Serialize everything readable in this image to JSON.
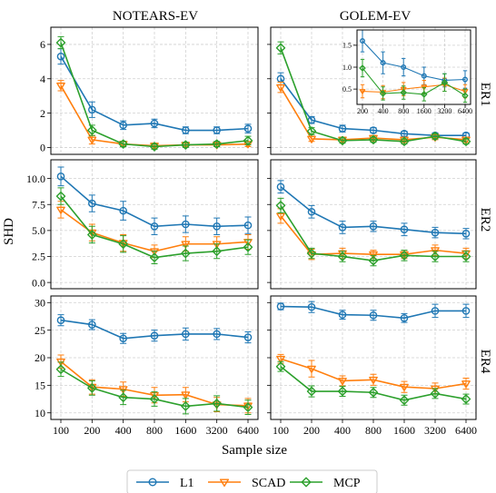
{
  "figure": {
    "xlabel": "Sample size",
    "ylabel": "SHD",
    "col_titles": [
      "NOTEARS-EV",
      "GOLEM-EV"
    ],
    "row_labels": [
      "ER1",
      "ER2",
      "ER4"
    ],
    "legend": [
      "L1",
      "SCAD",
      "MCP"
    ],
    "colors": {
      "L1": "#1f77b4",
      "SCAD": "#ff7f0e",
      "MCP": "#2ca02c"
    }
  },
  "chart_data": [
    {
      "type": "line",
      "panel": "ER1 / NOTEARS-EV",
      "categories": [
        "100",
        "200",
        "400",
        "800",
        "1600",
        "3200",
        "6400"
      ],
      "ylim": [
        -0.4,
        7.0
      ],
      "yticks": [
        0,
        2,
        4,
        6
      ],
      "grid": true,
      "series": [
        {
          "name": "L1",
          "values": [
            5.3,
            2.2,
            1.3,
            1.4,
            1.0,
            1.0,
            1.1
          ],
          "err": [
            0.45,
            0.45,
            0.25,
            0.25,
            0.2,
            0.2,
            0.25
          ]
        },
        {
          "name": "SCAD",
          "values": [
            3.6,
            0.45,
            0.2,
            0.1,
            0.15,
            0.15,
            0.2
          ],
          "err": [
            0.3,
            0.25,
            0.15,
            0.15,
            0.1,
            0.1,
            0.15
          ]
        },
        {
          "name": "MCP",
          "values": [
            6.1,
            1.0,
            0.2,
            0.05,
            0.15,
            0.2,
            0.4
          ],
          "err": [
            0.35,
            0.3,
            0.15,
            0.15,
            0.15,
            0.15,
            0.25
          ]
        }
      ]
    },
    {
      "type": "line",
      "panel": "ER1 / GOLEM-EV",
      "categories": [
        "100",
        "200",
        "400",
        "800",
        "1600",
        "3200",
        "6400"
      ],
      "ylim": [
        -0.4,
        7.0
      ],
      "yticks": [
        0,
        2,
        4,
        6
      ],
      "grid": true,
      "series": [
        {
          "name": "L1",
          "values": [
            4.0,
            1.6,
            1.1,
            1.0,
            0.8,
            0.7,
            0.7
          ],
          "err": [
            0.35,
            0.2,
            0.2,
            0.15,
            0.15,
            0.15,
            0.15
          ]
        },
        {
          "name": "SCAD",
          "values": [
            3.5,
            0.5,
            0.45,
            0.55,
            0.45,
            0.6,
            0.45
          ],
          "err": [
            0.3,
            0.15,
            0.15,
            0.15,
            0.15,
            0.15,
            0.15
          ]
        },
        {
          "name": "MCP",
          "values": [
            5.8,
            0.95,
            0.4,
            0.45,
            0.35,
            0.65,
            0.35
          ],
          "err": [
            0.35,
            0.2,
            0.15,
            0.15,
            0.15,
            0.15,
            0.15
          ]
        }
      ]
    },
    {
      "type": "line",
      "panel": "ER1 / GOLEM-EV inset",
      "categories": [
        "200",
        "400",
        "800",
        "1600",
        "3200",
        "6400"
      ],
      "ylim": [
        0.15,
        1.85
      ],
      "yticks": [
        0.5,
        1.0,
        1.5
      ],
      "grid": true,
      "series": [
        {
          "name": "L1",
          "values": [
            1.6,
            1.1,
            1.0,
            0.8,
            0.7,
            0.72
          ],
          "err": [
            0.25,
            0.25,
            0.2,
            0.2,
            0.15,
            0.2
          ]
        },
        {
          "name": "SCAD",
          "values": [
            0.45,
            0.43,
            0.5,
            0.55,
            0.6,
            0.45
          ],
          "err": [
            0.15,
            0.15,
            0.15,
            0.15,
            0.15,
            0.15
          ]
        },
        {
          "name": "MCP",
          "values": [
            0.98,
            0.4,
            0.42,
            0.38,
            0.65,
            0.35
          ],
          "err": [
            0.2,
            0.15,
            0.15,
            0.15,
            0.2,
            0.15
          ]
        }
      ]
    },
    {
      "type": "line",
      "panel": "ER2 / NOTEARS-EV",
      "categories": [
        "100",
        "200",
        "400",
        "800",
        "1600",
        "3200",
        "6400"
      ],
      "ylim": [
        -0.6,
        11.8
      ],
      "yticks": [
        0.0,
        2.5,
        5.0,
        7.5,
        10.0
      ],
      "grid": true,
      "series": [
        {
          "name": "L1",
          "values": [
            10.2,
            7.6,
            6.9,
            5.4,
            5.6,
            5.4,
            5.5
          ],
          "err": [
            0.9,
            0.8,
            0.9,
            0.8,
            0.8,
            0.8,
            0.8
          ]
        },
        {
          "name": "SCAD",
          "values": [
            7.0,
            4.8,
            3.8,
            3.0,
            3.7,
            3.7,
            3.9
          ],
          "err": [
            0.8,
            0.8,
            0.8,
            0.6,
            0.7,
            0.7,
            0.7
          ]
        },
        {
          "name": "MCP",
          "values": [
            8.3,
            4.6,
            3.7,
            2.4,
            2.8,
            3.0,
            3.4
          ],
          "err": [
            0.8,
            0.8,
            0.8,
            0.6,
            0.7,
            0.7,
            0.7
          ]
        }
      ]
    },
    {
      "type": "line",
      "panel": "ER2 / GOLEM-EV",
      "categories": [
        "100",
        "200",
        "400",
        "800",
        "1600",
        "3200",
        "6400"
      ],
      "ylim": [
        -0.6,
        11.8
      ],
      "yticks": [
        0.0,
        2.5,
        5.0,
        7.5,
        10.0
      ],
      "grid": true,
      "series": [
        {
          "name": "L1",
          "values": [
            9.2,
            6.8,
            5.3,
            5.4,
            5.1,
            4.8,
            4.7
          ],
          "err": [
            0.6,
            0.6,
            0.6,
            0.5,
            0.6,
            0.5,
            0.5
          ]
        },
        {
          "name": "SCAD",
          "values": [
            6.4,
            2.7,
            2.8,
            2.7,
            2.7,
            3.1,
            2.8
          ],
          "err": [
            0.7,
            0.5,
            0.5,
            0.4,
            0.4,
            0.5,
            0.5
          ]
        },
        {
          "name": "MCP",
          "values": [
            7.4,
            2.8,
            2.5,
            2.1,
            2.6,
            2.5,
            2.5
          ],
          "err": [
            0.7,
            0.5,
            0.5,
            0.5,
            0.5,
            0.5,
            0.5
          ]
        }
      ]
    },
    {
      "type": "line",
      "panel": "ER4 / NOTEARS-EV",
      "categories": [
        "100",
        "200",
        "400",
        "800",
        "1600",
        "3200",
        "6400"
      ],
      "ylim": [
        8.8,
        31.2
      ],
      "yticks": [
        10,
        15,
        20,
        25,
        30
      ],
      "grid": true,
      "series": [
        {
          "name": "L1",
          "values": [
            26.8,
            26.0,
            23.5,
            24.0,
            24.3,
            24.3,
            23.7
          ],
          "err": [
            1.0,
            0.9,
            0.9,
            1.0,
            1.1,
            1.0,
            1.0
          ]
        },
        {
          "name": "SCAD",
          "values": [
            19.3,
            14.7,
            14.3,
            13.2,
            13.3,
            11.5,
            11.3
          ],
          "err": [
            1.2,
            1.3,
            1.3,
            1.4,
            1.3,
            1.3,
            1.3
          ]
        },
        {
          "name": "MCP",
          "values": [
            17.9,
            14.5,
            12.8,
            12.5,
            11.2,
            11.7,
            11.0
          ],
          "err": [
            1.3,
            1.3,
            1.3,
            1.3,
            1.4,
            1.4,
            1.3
          ]
        }
      ]
    },
    {
      "type": "line",
      "panel": "ER4 / GOLEM-EV",
      "categories": [
        "100",
        "200",
        "400",
        "800",
        "1600",
        "3200",
        "6400"
      ],
      "ylim": [
        8.8,
        31.2
      ],
      "yticks": [
        10,
        15,
        20,
        25,
        30
      ],
      "grid": true,
      "series": [
        {
          "name": "L1",
          "values": [
            29.3,
            29.2,
            27.8,
            27.7,
            27.2,
            28.5,
            28.5
          ],
          "err": [
            0.6,
            1.0,
            0.8,
            0.9,
            0.8,
            1.2,
            1.2
          ]
        },
        {
          "name": "SCAD",
          "values": [
            19.8,
            18.0,
            15.8,
            16.0,
            14.7,
            14.4,
            15.3
          ],
          "err": [
            0.8,
            1.5,
            0.9,
            1.0,
            1.0,
            1.0,
            1.0
          ]
        },
        {
          "name": "MCP",
          "values": [
            18.4,
            13.9,
            13.9,
            13.7,
            12.3,
            13.5,
            12.5
          ],
          "err": [
            0.9,
            1.0,
            0.9,
            0.9,
            0.9,
            0.9,
            0.9
          ]
        }
      ]
    }
  ]
}
